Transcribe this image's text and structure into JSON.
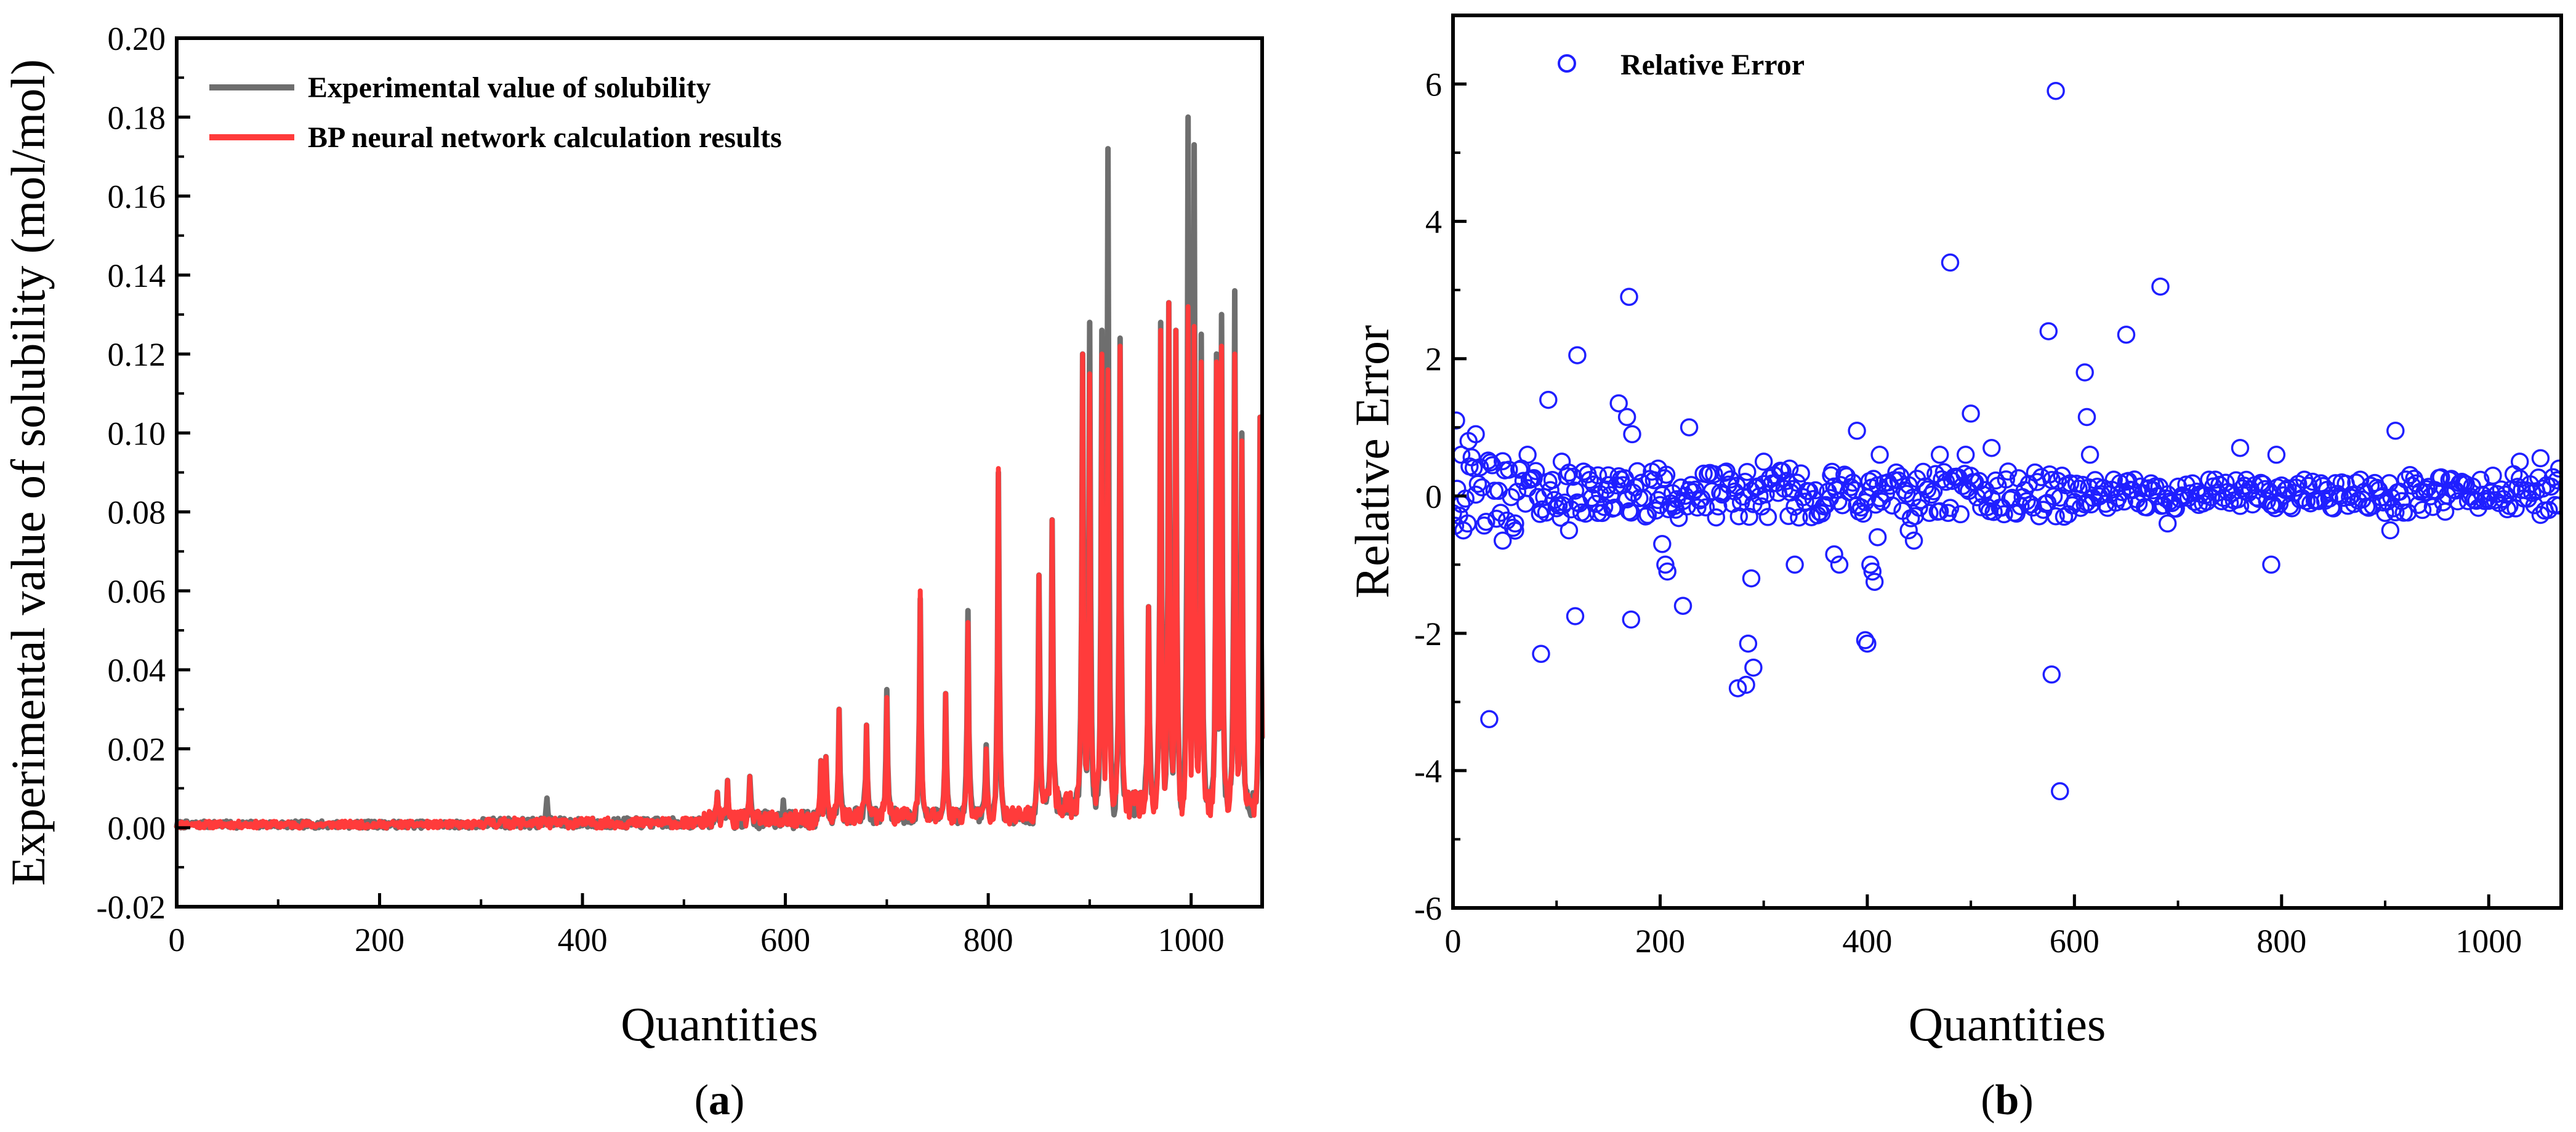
{
  "chart_data": [
    {
      "type": "line",
      "panel_label": "(a)",
      "panel_letter": "a",
      "xlabel": "Quantities",
      "ylabel": "Experimental value of solubility (mol/mol)",
      "xlim": [
        0,
        1070
      ],
      "ylim": [
        -0.02,
        0.2
      ],
      "xticks": [
        0,
        200,
        400,
        600,
        800,
        1000
      ],
      "yticks": [
        -0.02,
        0.0,
        0.02,
        0.04,
        0.06,
        0.08,
        0.1,
        0.12,
        0.14,
        0.16,
        0.18,
        0.2
      ],
      "ytick_labels": [
        "-0.02",
        "0.00",
        "0.02",
        "0.04",
        "0.06",
        "0.08",
        "0.10",
        "0.12",
        "0.14",
        "0.16",
        "0.18",
        "0.20"
      ],
      "legend_position": "top-left",
      "series": [
        {
          "name": "Experimental value of solubility",
          "color": "#6e6e6e",
          "peaks": [
            [
              365,
              0.0075
            ],
            [
              533,
              0.009
            ],
            [
              543,
              0.012
            ],
            [
              565,
              0.013
            ],
            [
              598,
              0.007
            ],
            [
              635,
              0.017
            ],
            [
              640,
              0.018
            ],
            [
              653,
              0.03
            ],
            [
              680,
              0.026
            ],
            [
              700,
              0.035
            ],
            [
              733,
              0.058
            ],
            [
              758,
              0.034
            ],
            [
              780,
              0.055
            ],
            [
              798,
              0.021
            ],
            [
              810,
              0.09
            ],
            [
              850,
              0.064
            ],
            [
              863,
              0.078
            ],
            [
              893,
              0.12
            ],
            [
              900,
              0.128
            ],
            [
              912,
              0.126
            ],
            [
              918,
              0.172
            ],
            [
              930,
              0.124
            ],
            [
              958,
              0.056
            ],
            [
              970,
              0.128
            ],
            [
              978,
              0.133
            ],
            [
              985,
              0.126
            ],
            [
              997,
              0.18
            ],
            [
              1003,
              0.173
            ],
            [
              1010,
              0.125
            ],
            [
              1025,
              0.12
            ],
            [
              1030,
              0.13
            ],
            [
              1043,
              0.136
            ],
            [
              1050,
              0.1
            ],
            [
              1068,
              0.104
            ]
          ]
        },
        {
          "name": "BP neural network calculation results",
          "color": "#ff3b3b",
          "peaks": [
            [
              533,
              0.009
            ],
            [
              543,
              0.012
            ],
            [
              565,
              0.013
            ],
            [
              635,
              0.017
            ],
            [
              640,
              0.018
            ],
            [
              653,
              0.03
            ],
            [
              680,
              0.026
            ],
            [
              700,
              0.033
            ],
            [
              733,
              0.06
            ],
            [
              758,
              0.034
            ],
            [
              780,
              0.052
            ],
            [
              798,
              0.02
            ],
            [
              810,
              0.091
            ],
            [
              850,
              0.064
            ],
            [
              863,
              0.078
            ],
            [
              893,
              0.12
            ],
            [
              900,
              0.115
            ],
            [
              912,
              0.12
            ],
            [
              918,
              0.116
            ],
            [
              930,
              0.122
            ],
            [
              958,
              0.056
            ],
            [
              970,
              0.126
            ],
            [
              978,
              0.133
            ],
            [
              985,
              0.126
            ],
            [
              997,
              0.132
            ],
            [
              1003,
              0.127
            ],
            [
              1010,
              0.118
            ],
            [
              1025,
              0.118
            ],
            [
              1030,
              0.122
            ],
            [
              1043,
              0.12
            ],
            [
              1050,
              0.098
            ],
            [
              1068,
              0.104
            ]
          ]
        }
      ]
    },
    {
      "type": "scatter",
      "panel_label": "(b)",
      "panel_letter": "b",
      "xlabel": "Quantities",
      "ylabel": "Relative Error",
      "xlim": [
        0,
        1070
      ],
      "ylim": [
        -6,
        7
      ],
      "xticks": [
        0,
        200,
        400,
        600,
        800,
        1000
      ],
      "yticks": [
        -6,
        -4,
        -2,
        0,
        2,
        4,
        6
      ],
      "ytick_labels": [
        "-6",
        "-4",
        "-2",
        "0",
        "2",
        "4",
        "6"
      ],
      "legend_position": "top-left",
      "series": [
        {
          "name": "Relative Error",
          "color": "#1f1fff",
          "points": [
            [
              3,
              1.1
            ],
            [
              8,
              0.6
            ],
            [
              15,
              0.8
            ],
            [
              22,
              0.9
            ],
            [
              35,
              -3.25
            ],
            [
              48,
              -0.65
            ],
            [
              60,
              -0.4
            ],
            [
              72,
              0.6
            ],
            [
              85,
              -2.3
            ],
            [
              92,
              1.4
            ],
            [
              105,
              0.5
            ],
            [
              112,
              -0.5
            ],
            [
              118,
              -1.75
            ],
            [
              120,
              2.05
            ],
            [
              140,
              0.3
            ],
            [
              150,
              0.3
            ],
            [
              160,
              1.35
            ],
            [
              168,
              1.15
            ],
            [
              170,
              2.9
            ],
            [
              173,
              0.9
            ],
            [
              172,
              -1.8
            ],
            [
              198,
              0.4
            ],
            [
              202,
              -0.7
            ],
            [
              205,
              -1.0
            ],
            [
              207,
              -1.1
            ],
            [
              215,
              -0.2
            ],
            [
              222,
              -1.6
            ],
            [
              228,
              1.0
            ],
            [
              275,
              -2.8
            ],
            [
              283,
              -2.75
            ],
            [
              285,
              -2.15
            ],
            [
              288,
              -1.2
            ],
            [
              290,
              -2.5
            ],
            [
              300,
              0.5
            ],
            [
              325,
              0.4
            ],
            [
              330,
              -1.0
            ],
            [
              365,
              0.3
            ],
            [
              368,
              -0.85
            ],
            [
              373,
              -1.0
            ],
            [
              390,
              0.95
            ],
            [
              398,
              -2.1
            ],
            [
              400,
              -2.15
            ],
            [
              403,
              -1.0
            ],
            [
              405,
              -1.1
            ],
            [
              407,
              -1.25
            ],
            [
              410,
              -0.6
            ],
            [
              412,
              0.6
            ],
            [
              440,
              -0.5
            ],
            [
              445,
              -0.65
            ],
            [
              470,
              0.6
            ],
            [
              480,
              3.4
            ],
            [
              495,
              0.6
            ],
            [
              500,
              1.2
            ],
            [
              520,
              0.7
            ],
            [
              575,
              2.4
            ],
            [
              578,
              -2.6
            ],
            [
              582,
              5.9
            ],
            [
              586,
              -4.3
            ],
            [
              610,
              1.8
            ],
            [
              612,
              1.15
            ],
            [
              615,
              0.6
            ],
            [
              650,
              2.35
            ],
            [
              683,
              3.05
            ],
            [
              690,
              -0.4
            ],
            [
              760,
              0.7
            ],
            [
              790,
              -1.0
            ],
            [
              795,
              0.6
            ],
            [
              905,
              -0.5
            ],
            [
              910,
              0.95
            ],
            [
              1030,
              0.5
            ],
            [
              1050,
              0.55
            ],
            [
              1068,
              0.4
            ]
          ]
        }
      ]
    }
  ]
}
